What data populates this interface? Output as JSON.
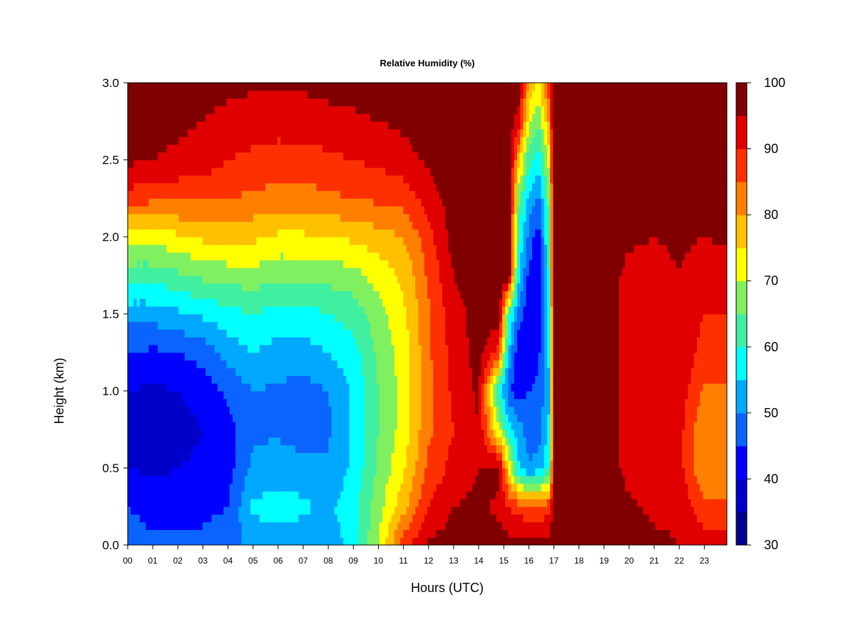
{
  "chart_data": {
    "type": "heatmap",
    "title": "Relative Humidity (%)",
    "xlabel": "Hours (UTC)",
    "ylabel": "Height (km)",
    "xlim": [
      0,
      23.9
    ],
    "ylim": [
      0,
      3.0
    ],
    "x_ticks": [
      "00",
      "01",
      "02",
      "03",
      "04",
      "05",
      "06",
      "07",
      "08",
      "09",
      "10",
      "11",
      "12",
      "13",
      "14",
      "15",
      "16",
      "17",
      "18",
      "19",
      "20",
      "21",
      "22",
      "23"
    ],
    "y_ticks": [
      "0.0",
      "0.5",
      "1.0",
      "1.5",
      "2.0",
      "2.5",
      "3.0"
    ],
    "colorbar": {
      "levels": [
        30,
        35,
        40,
        45,
        50,
        55,
        60,
        65,
        70,
        75,
        80,
        85,
        90,
        95,
        100
      ],
      "tick_labels": [
        "30",
        "40",
        "50",
        "60",
        "70",
        "80",
        "90",
        "100"
      ],
      "colors": [
        "#00008B",
        "#0000C8",
        "#0000FF",
        "#0A64FF",
        "#00A8FF",
        "#00FFFF",
        "#40F0A0",
        "#80F060",
        "#FFFF00",
        "#FFC000",
        "#FF8000",
        "#FF3000",
        "#E00000",
        "#800000"
      ]
    },
    "rh_grid": {
      "hours": [
        0,
        1,
        2,
        3,
        4,
        5,
        6,
        7,
        8,
        9,
        10,
        11,
        12,
        13,
        14,
        14.8,
        15.2,
        15.6,
        16.0,
        16.4,
        16.8,
        17,
        18,
        19,
        20,
        21,
        22,
        23,
        23.9
      ],
      "heights_km": [
        0.0,
        0.25,
        0.5,
        0.75,
        1.0,
        1.25,
        1.5,
        1.75,
        2.0,
        2.25,
        2.5,
        2.75,
        3.0
      ],
      "values": [
        [
          48,
          45,
          40,
          38,
          40,
          45,
          52,
          62,
          72,
          88,
          96,
          98,
          98
        ],
        [
          46,
          43,
          39,
          37,
          39,
          44,
          52,
          62,
          72,
          86,
          95,
          97,
          98
        ],
        [
          46,
          43,
          40,
          38,
          40,
          45,
          54,
          64,
          74,
          86,
          94,
          96,
          98
        ],
        [
          46,
          44,
          41,
          40,
          42,
          47,
          56,
          66,
          76,
          86,
          93,
          95,
          97
        ],
        [
          47,
          45,
          43,
          43,
          46,
          52,
          58,
          67,
          77,
          85,
          90,
          93,
          97
        ],
        [
          52,
          56,
          51,
          49,
          50,
          55,
          60,
          68,
          76,
          84,
          89,
          92,
          96
        ],
        [
          53,
          57,
          53,
          49,
          49,
          53,
          58,
          66,
          74,
          83,
          88,
          92,
          96
        ],
        [
          52,
          56,
          52,
          47,
          48,
          53,
          58,
          66,
          74,
          83,
          88,
          92,
          96
        ],
        [
          51,
          54,
          51,
          49,
          50,
          55,
          60,
          67,
          75,
          84,
          89,
          93,
          97
        ],
        [
          58,
          58,
          56,
          56,
          56,
          58,
          62,
          68,
          76,
          85,
          90,
          94,
          97
        ],
        [
          70,
          68,
          66,
          65,
          65,
          66,
          68,
          72,
          78,
          86,
          91,
          95,
          98
        ],
        [
          88,
          78,
          74,
          72,
          72,
          72,
          74,
          76,
          80,
          87,
          93,
          96,
          98
        ],
        [
          96,
          90,
          86,
          84,
          84,
          84,
          84,
          86,
          88,
          92,
          96,
          98,
          99
        ],
        [
          97,
          95,
          92,
          90,
          91,
          92,
          93,
          95,
          97,
          98,
          99,
          99,
          99
        ],
        [
          97,
          96,
          95,
          95,
          96,
          97,
          97,
          98,
          99,
          99,
          99,
          99,
          99
        ],
        [
          97,
          94,
          97,
          70,
          60,
          88,
          99,
          99,
          99,
          99,
          99,
          99,
          99
        ],
        [
          97,
          90,
          75,
          58,
          46,
          54,
          62,
          99,
          99,
          99,
          99,
          99,
          99
        ],
        [
          97,
          88,
          56,
          52,
          42,
          40,
          48,
          56,
          60,
          66,
          78,
          92,
          99
        ],
        [
          97,
          86,
          50,
          48,
          45,
          43,
          40,
          44,
          48,
          54,
          62,
          72,
          80
        ],
        [
          97,
          86,
          52,
          48,
          46,
          44,
          42,
          40,
          42,
          48,
          58,
          66,
          74
        ],
        [
          97,
          88,
          60,
          56,
          54,
          56,
          58,
          60,
          62,
          66,
          72,
          80,
          88
        ],
        [
          98,
          97,
          97,
          97,
          97,
          98,
          98,
          99,
          99,
          99,
          99,
          99,
          99
        ],
        [
          98,
          99,
          99,
          99,
          99,
          99,
          99,
          99,
          99,
          99,
          99,
          99,
          99
        ],
        [
          98,
          99,
          99,
          99,
          99,
          99,
          99,
          99,
          99,
          99,
          99,
          99,
          99
        ],
        [
          97,
          96,
          93,
          92,
          92,
          92,
          92,
          93,
          96,
          98,
          99,
          99,
          99
        ],
        [
          96,
          94,
          90,
          90,
          90,
          90,
          92,
          93,
          95,
          98,
          99,
          99,
          99
        ],
        [
          95,
          94,
          92,
          92,
          93,
          94,
          94,
          95,
          96,
          98,
          99,
          99,
          99
        ],
        [
          93,
          86,
          80,
          80,
          84,
          88,
          90,
          92,
          95,
          98,
          99,
          99,
          99
        ],
        [
          94,
          86,
          82,
          82,
          84,
          88,
          90,
          92,
          96,
          98,
          99,
          99,
          99
        ]
      ]
    }
  }
}
